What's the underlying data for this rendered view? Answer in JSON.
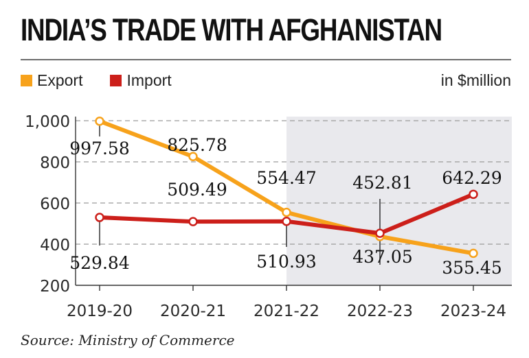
{
  "title": "INDIA’S TRADE WITH AFGHANISTAN",
  "unit": "in $million",
  "source": "Source: Ministry of Commerce",
  "colors": {
    "export": "#f7a21b",
    "import": "#cc1f1a",
    "shade": "#e9e9ed",
    "grid": "#9a9a9a"
  },
  "chart_data": {
    "type": "line",
    "categories": [
      "2019-20",
      "2020-21",
      "2021-22",
      "2022-23",
      "2023-24"
    ],
    "series": [
      {
        "name": "Export",
        "values": [
          997.58,
          825.78,
          554.47,
          437.05,
          355.45
        ],
        "labels": [
          "997.58",
          "825.78",
          "554.47",
          "437.05",
          "355.45"
        ]
      },
      {
        "name": "Import",
        "values": [
          529.84,
          509.49,
          510.93,
          452.81,
          642.29
        ],
        "labels": [
          "529.84",
          "509.49",
          "510.93",
          "452.81",
          "642.29"
        ]
      }
    ],
    "yticks": [
      "1,000",
      "800",
      "600",
      "400",
      "200"
    ],
    "ylim": [
      200,
      1000
    ],
    "grid": true,
    "legend": "top-left",
    "shaded_categories": [
      "2022-23",
      "2023-24"
    ]
  }
}
